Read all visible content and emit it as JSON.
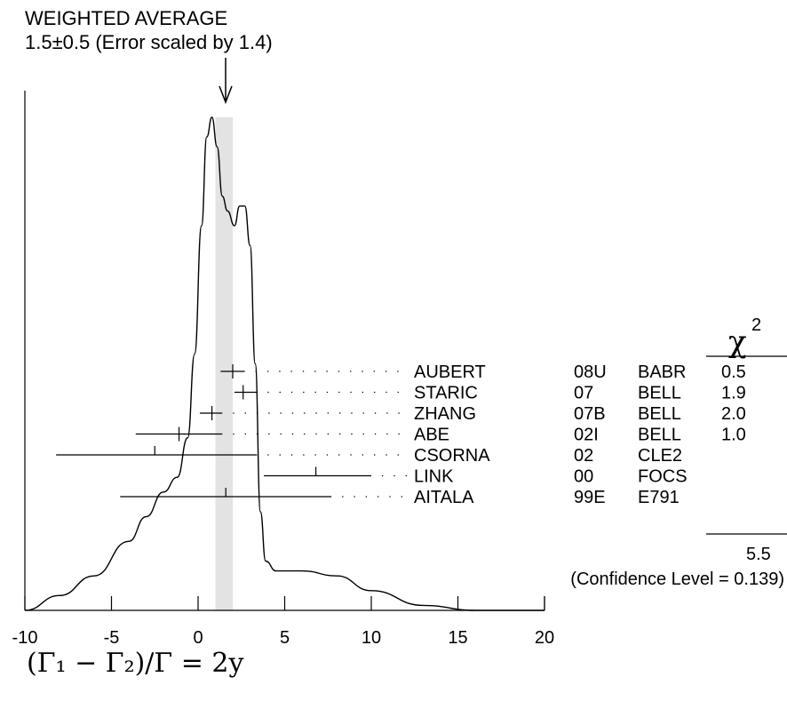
{
  "chart_data": {
    "type": "ideogram",
    "title": "WEIGHTED AVERAGE",
    "subtitle": "1.5±0.5 (Error scaled by 1.4)",
    "weighted_average": {
      "value": 1.5,
      "error": 0.5,
      "scale_factor": 1.4,
      "band": [
        1.0,
        2.0
      ]
    },
    "xlabel": "(Γ₁ − Γ₂)/Γ = 2y",
    "xlim": [
      -10,
      20
    ],
    "xticks": [
      -10,
      -5,
      0,
      5,
      10,
      15,
      20
    ],
    "chi2_symbol": "χ",
    "chi2_exp": "2",
    "measurements": [
      {
        "name": "AUBERT",
        "year": "08U",
        "experiment": "BABR",
        "chi2": "0.5",
        "value": 2.0,
        "lo": 1.3,
        "hi": 2.7,
        "tick": "full"
      },
      {
        "name": "STARIC",
        "year": "07",
        "experiment": "BELL",
        "chi2": "1.9",
        "value": 2.6,
        "lo": 2.1,
        "hi": 3.4,
        "tick": "full"
      },
      {
        "name": "ZHANG",
        "year": "07B",
        "experiment": "BELL",
        "chi2": "2.0",
        "value": 0.8,
        "lo": 0.1,
        "hi": 1.4,
        "tick": "full"
      },
      {
        "name": "ABE",
        "year": "02I",
        "experiment": "BELL",
        "chi2": "1.0",
        "value": -1.1,
        "lo": -3.6,
        "hi": 1.4,
        "tick": "full"
      },
      {
        "name": "CSORNA",
        "year": "02",
        "experiment": "CLE2",
        "chi2": "",
        "value": -2.5,
        "lo": -8.2,
        "hi": 3.4,
        "tick": "half"
      },
      {
        "name": "LINK",
        "year": "00",
        "experiment": "FOCS",
        "chi2": "",
        "value": 6.8,
        "lo": 3.8,
        "hi": 10.0,
        "tick": "half"
      },
      {
        "name": "AITALA",
        "year": "99E",
        "experiment": "E791",
        "chi2": "",
        "value": 1.6,
        "lo": -4.5,
        "hi": 7.7,
        "tick": "half"
      }
    ],
    "chi2_total": "5.5",
    "confidence_level": "(Confidence Level = 0.139)",
    "ideogram_curve": [
      [
        -10,
        0.0
      ],
      [
        -8,
        0.03
      ],
      [
        -6,
        0.07
      ],
      [
        -4,
        0.14
      ],
      [
        -3,
        0.19
      ],
      [
        -2,
        0.24
      ],
      [
        -1.2,
        0.27
      ],
      [
        -0.6,
        0.35
      ],
      [
        -0.2,
        0.52
      ],
      [
        0.2,
        0.78
      ],
      [
        0.5,
        0.96
      ],
      [
        0.8,
        1.0
      ],
      [
        1.1,
        0.94
      ],
      [
        1.4,
        0.84
      ],
      [
        1.7,
        0.81
      ],
      [
        2.1,
        0.78
      ],
      [
        2.4,
        0.82
      ],
      [
        2.7,
        0.82
      ],
      [
        3.0,
        0.74
      ],
      [
        3.3,
        0.5
      ],
      [
        3.6,
        0.2
      ],
      [
        3.9,
        0.1
      ],
      [
        4.5,
        0.08
      ],
      [
        6,
        0.08
      ],
      [
        8,
        0.07
      ],
      [
        10,
        0.04
      ],
      [
        13,
        0.01
      ],
      [
        16,
        0.0
      ],
      [
        20,
        0.0
      ]
    ]
  }
}
